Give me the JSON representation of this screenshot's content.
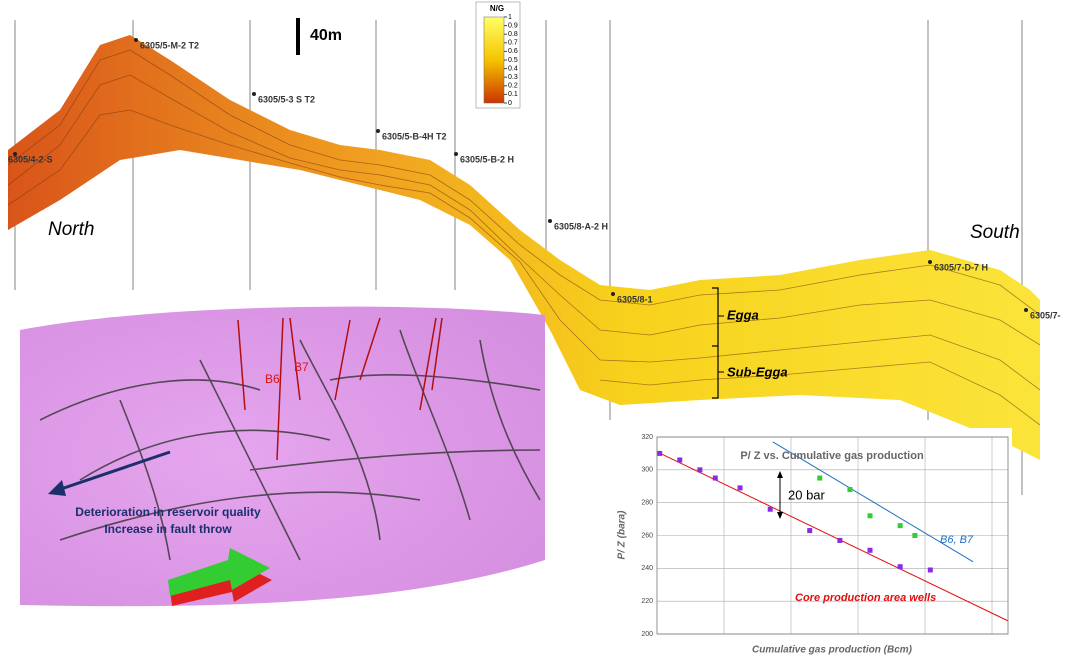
{
  "section": {
    "scale": "40m",
    "north": "North",
    "south": "South",
    "colorbar": {
      "title": "N/G",
      "ticks": [
        1,
        0.9,
        0.8,
        0.7,
        0.6,
        0.5,
        0.4,
        0.3,
        0.2,
        0.1,
        0
      ]
    },
    "wells": [
      "6305/4-2-S",
      "6305/5-M-2 T2",
      "6305/5-3 S T2",
      "6305/5-B-4H T2",
      "6305/5-B-2 H",
      "6305/8-A-2 H",
      "6305/8-1",
      "6305/7-D-7 H",
      "6305/7-"
    ],
    "zones": [
      "Egga",
      "Sub-Egga"
    ]
  },
  "map3d": {
    "wells": [
      "B6",
      "B7"
    ],
    "arrow_text": [
      "Deterioration in reservoir quality",
      "Increase in fault throw"
    ]
  },
  "chart_data": {
    "type": "scatter",
    "title": "P/ Z vs. Cumulative gas production",
    "y_label": "P/ Z (bara)",
    "x_label": "Cumulative gas production (Bcm)",
    "xlim": [
      0,
      5.24
    ],
    "ylim": [
      200,
      320
    ],
    "yticks": [
      200,
      220,
      240,
      260,
      280,
      300,
      320
    ],
    "annotation": "20 bar",
    "series": [
      {
        "color": "#8a2be2",
        "x": [
          0.04,
          0.34,
          0.64,
          0.87,
          1.24,
          1.69,
          2.28,
          2.73,
          3.18,
          3.63,
          4.08
        ],
        "values": [
          310,
          306,
          300,
          295,
          289,
          276,
          263,
          257,
          251,
          241,
          239
        ]
      },
      {
        "color": "#33cc33",
        "x": [
          2.43,
          2.88,
          3.18,
          3.63,
          3.85
        ],
        "values": [
          295,
          288,
          272,
          266,
          260
        ]
      }
    ],
    "trend_lines": [
      {
        "label": "B6, B7",
        "color": "#1f6fc4",
        "x": [
          1.73,
          4.72
        ],
        "values": [
          317,
          244
        ]
      },
      {
        "label": "Core production area wells",
        "color": "#e01010",
        "x": [
          0,
          5.24
        ],
        "values": [
          311,
          208
        ]
      }
    ]
  }
}
